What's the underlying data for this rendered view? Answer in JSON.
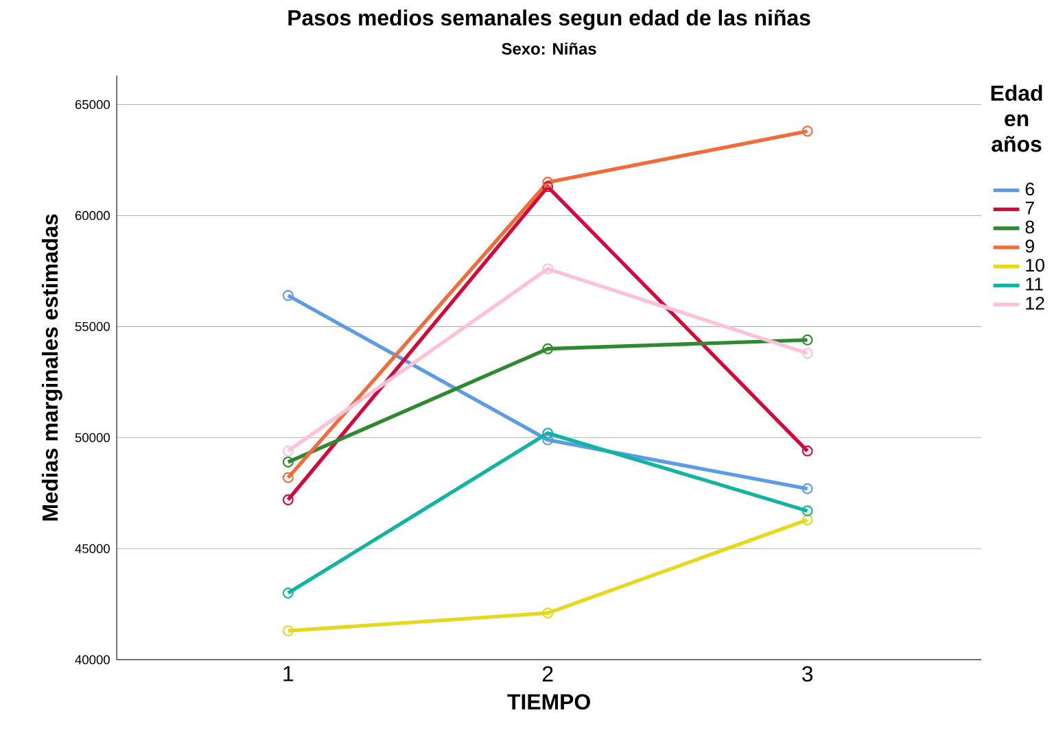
{
  "chart_data": {
    "type": "line",
    "title": "Pasos medios semanales segun edad de las niñas",
    "subtitle": "Sexo: Niñas",
    "xlabel": "TIEMPO",
    "ylabel": "Medias marginales estimadas",
    "legend_title": "Edad en años",
    "categories": [
      "1",
      "2",
      "3"
    ],
    "ylim": [
      40000,
      66300
    ],
    "yticks": [
      40000,
      45000,
      50000,
      55000,
      60000,
      65000
    ],
    "grid": "y",
    "legend": "right",
    "marker": "circle",
    "line_style": "solid",
    "series": [
      {
        "name": "6",
        "color": "#5b9be8",
        "values": [
          56400,
          49900,
          47700
        ]
      },
      {
        "name": "7",
        "color": "#d6083b",
        "values": [
          47200,
          61300,
          49400
        ]
      },
      {
        "name": "8",
        "color": "#2f8a2f",
        "values": [
          48900,
          54000,
          54400
        ]
      },
      {
        "name": "9",
        "color": "#f26b3a",
        "values": [
          48200,
          61500,
          63800
        ]
      },
      {
        "name": "10",
        "color": "#e6d81a",
        "values": [
          41300,
          42100,
          46300
        ]
      },
      {
        "name": "11",
        "color": "#0fb5a0",
        "values": [
          43000,
          50200,
          46700
        ]
      },
      {
        "name": "12",
        "color": "#ffc0dc",
        "values": [
          49400,
          57600,
          53800
        ]
      }
    ]
  }
}
